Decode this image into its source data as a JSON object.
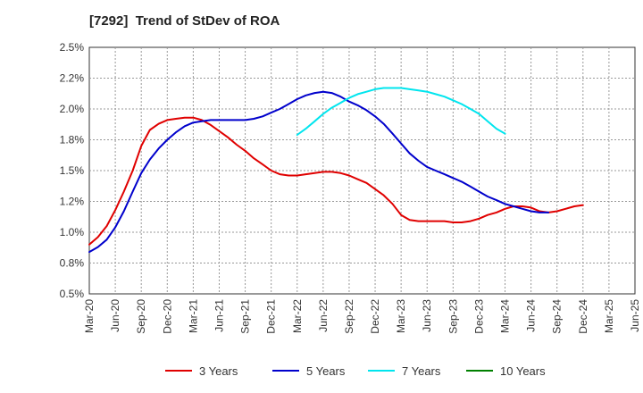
{
  "chart_data": {
    "type": "line",
    "title": "[7292]  Trend of StDev of ROA",
    "xlabel": "",
    "ylabel": "",
    "x_ticks": [
      "Mar-20",
      "Jun-20",
      "Sep-20",
      "Dec-20",
      "Mar-21",
      "Jun-21",
      "Sep-21",
      "Dec-21",
      "Mar-22",
      "Jun-22",
      "Sep-22",
      "Dec-22",
      "Mar-23",
      "Jun-23",
      "Sep-23",
      "Dec-23",
      "Mar-24",
      "Jun-24",
      "Sep-24",
      "Dec-24",
      "Mar-25",
      "Jun-25"
    ],
    "y_ticks": [
      "0.5%",
      "0.8%",
      "1.0%",
      "1.2%",
      "1.5%",
      "1.8%",
      "2.0%",
      "2.2%",
      "2.5%"
    ],
    "ylim": [
      0.5,
      2.5
    ],
    "grid": true,
    "legend_position": "bottom",
    "series": [
      {
        "name": "3 Years",
        "color": "#e00000",
        "points": [
          [
            0,
            0.9
          ],
          [
            0.33,
            0.96
          ],
          [
            0.67,
            1.05
          ],
          [
            1,
            1.18
          ],
          [
            1.33,
            1.33
          ],
          [
            1.67,
            1.5
          ],
          [
            2,
            1.7
          ],
          [
            2.33,
            1.83
          ],
          [
            2.67,
            1.88
          ],
          [
            3,
            1.91
          ],
          [
            3.33,
            1.92
          ],
          [
            3.67,
            1.93
          ],
          [
            4,
            1.93
          ],
          [
            4.33,
            1.91
          ],
          [
            4.67,
            1.87
          ],
          [
            5,
            1.82
          ],
          [
            5.33,
            1.77
          ],
          [
            5.67,
            1.71
          ],
          [
            6,
            1.66
          ],
          [
            6.33,
            1.6
          ],
          [
            6.67,
            1.55
          ],
          [
            7,
            1.5
          ],
          [
            7.33,
            1.47
          ],
          [
            7.67,
            1.46
          ],
          [
            8,
            1.46
          ],
          [
            8.33,
            1.47
          ],
          [
            8.67,
            1.48
          ],
          [
            9,
            1.49
          ],
          [
            9.33,
            1.49
          ],
          [
            9.67,
            1.48
          ],
          [
            10,
            1.46
          ],
          [
            10.33,
            1.43
          ],
          [
            10.67,
            1.4
          ],
          [
            11,
            1.35
          ],
          [
            11.33,
            1.3
          ],
          [
            11.67,
            1.23
          ],
          [
            12,
            1.14
          ],
          [
            12.33,
            1.1
          ],
          [
            12.67,
            1.09
          ],
          [
            13,
            1.09
          ],
          [
            13.33,
            1.09
          ],
          [
            13.67,
            1.09
          ],
          [
            14,
            1.08
          ],
          [
            14.33,
            1.08
          ],
          [
            14.67,
            1.09
          ],
          [
            15,
            1.11
          ],
          [
            15.33,
            1.14
          ],
          [
            15.67,
            1.16
          ],
          [
            16,
            1.19
          ],
          [
            16.33,
            1.21
          ],
          [
            16.67,
            1.21
          ],
          [
            17,
            1.2
          ],
          [
            17.33,
            1.17
          ],
          [
            17.67,
            1.16
          ],
          [
            18,
            1.17
          ],
          [
            18.33,
            1.19
          ],
          [
            18.67,
            1.21
          ],
          [
            19,
            1.22
          ]
        ]
      },
      {
        "name": "5 Years",
        "color": "#0000cc",
        "points": [
          [
            0,
            0.84
          ],
          [
            0.33,
            0.88
          ],
          [
            0.67,
            0.94
          ],
          [
            1,
            1.04
          ],
          [
            1.33,
            1.17
          ],
          [
            1.67,
            1.33
          ],
          [
            2,
            1.48
          ],
          [
            2.33,
            1.59
          ],
          [
            2.67,
            1.68
          ],
          [
            3,
            1.75
          ],
          [
            3.33,
            1.81
          ],
          [
            3.67,
            1.86
          ],
          [
            4,
            1.89
          ],
          [
            4.33,
            1.9
          ],
          [
            4.67,
            1.91
          ],
          [
            5,
            1.91
          ],
          [
            5.33,
            1.91
          ],
          [
            5.67,
            1.91
          ],
          [
            6,
            1.91
          ],
          [
            6.33,
            1.92
          ],
          [
            6.67,
            1.94
          ],
          [
            7,
            1.97
          ],
          [
            7.33,
            2.0
          ],
          [
            7.67,
            2.04
          ],
          [
            8,
            2.08
          ],
          [
            8.33,
            2.11
          ],
          [
            8.67,
            2.13
          ],
          [
            9,
            2.14
          ],
          [
            9.33,
            2.13
          ],
          [
            9.67,
            2.1
          ],
          [
            10,
            2.06
          ],
          [
            10.33,
            2.03
          ],
          [
            10.67,
            1.99
          ],
          [
            11,
            1.94
          ],
          [
            11.33,
            1.88
          ],
          [
            11.67,
            1.8
          ],
          [
            12,
            1.72
          ],
          [
            12.33,
            1.64
          ],
          [
            12.67,
            1.58
          ],
          [
            13,
            1.53
          ],
          [
            13.33,
            1.5
          ],
          [
            13.67,
            1.47
          ],
          [
            14,
            1.44
          ],
          [
            14.33,
            1.41
          ],
          [
            14.67,
            1.37
          ],
          [
            15,
            1.33
          ],
          [
            15.33,
            1.29
          ],
          [
            15.67,
            1.26
          ],
          [
            16,
            1.23
          ],
          [
            16.33,
            1.21
          ],
          [
            16.67,
            1.19
          ],
          [
            17,
            1.17
          ],
          [
            17.33,
            1.16
          ],
          [
            17.67,
            1.16
          ]
        ]
      },
      {
        "name": "7 Years",
        "color": "#00e5ee",
        "points": [
          [
            0,
            1.79
          ],
          [
            0.33,
            1.84
          ],
          [
            0.67,
            1.9
          ],
          [
            1,
            1.96
          ],
          [
            1.33,
            2.01
          ],
          [
            1.67,
            2.05
          ],
          [
            2,
            2.09
          ],
          [
            2.33,
            2.12
          ],
          [
            2.67,
            2.14
          ],
          [
            3,
            2.16
          ],
          [
            3.33,
            2.17
          ],
          [
            3.67,
            2.17
          ],
          [
            4,
            2.17
          ],
          [
            4.33,
            2.16
          ],
          [
            4.67,
            2.15
          ],
          [
            5,
            2.14
          ],
          [
            5.33,
            2.12
          ],
          [
            5.67,
            2.1
          ],
          [
            6,
            2.07
          ],
          [
            6.33,
            2.04
          ],
          [
            6.67,
            2.0
          ],
          [
            7,
            1.96
          ],
          [
            7.33,
            1.9
          ],
          [
            7.67,
            1.84
          ],
          [
            8,
            1.8
          ]
        ]
      },
      {
        "name": "10 Years",
        "color": "#008000",
        "points": []
      }
    ]
  }
}
